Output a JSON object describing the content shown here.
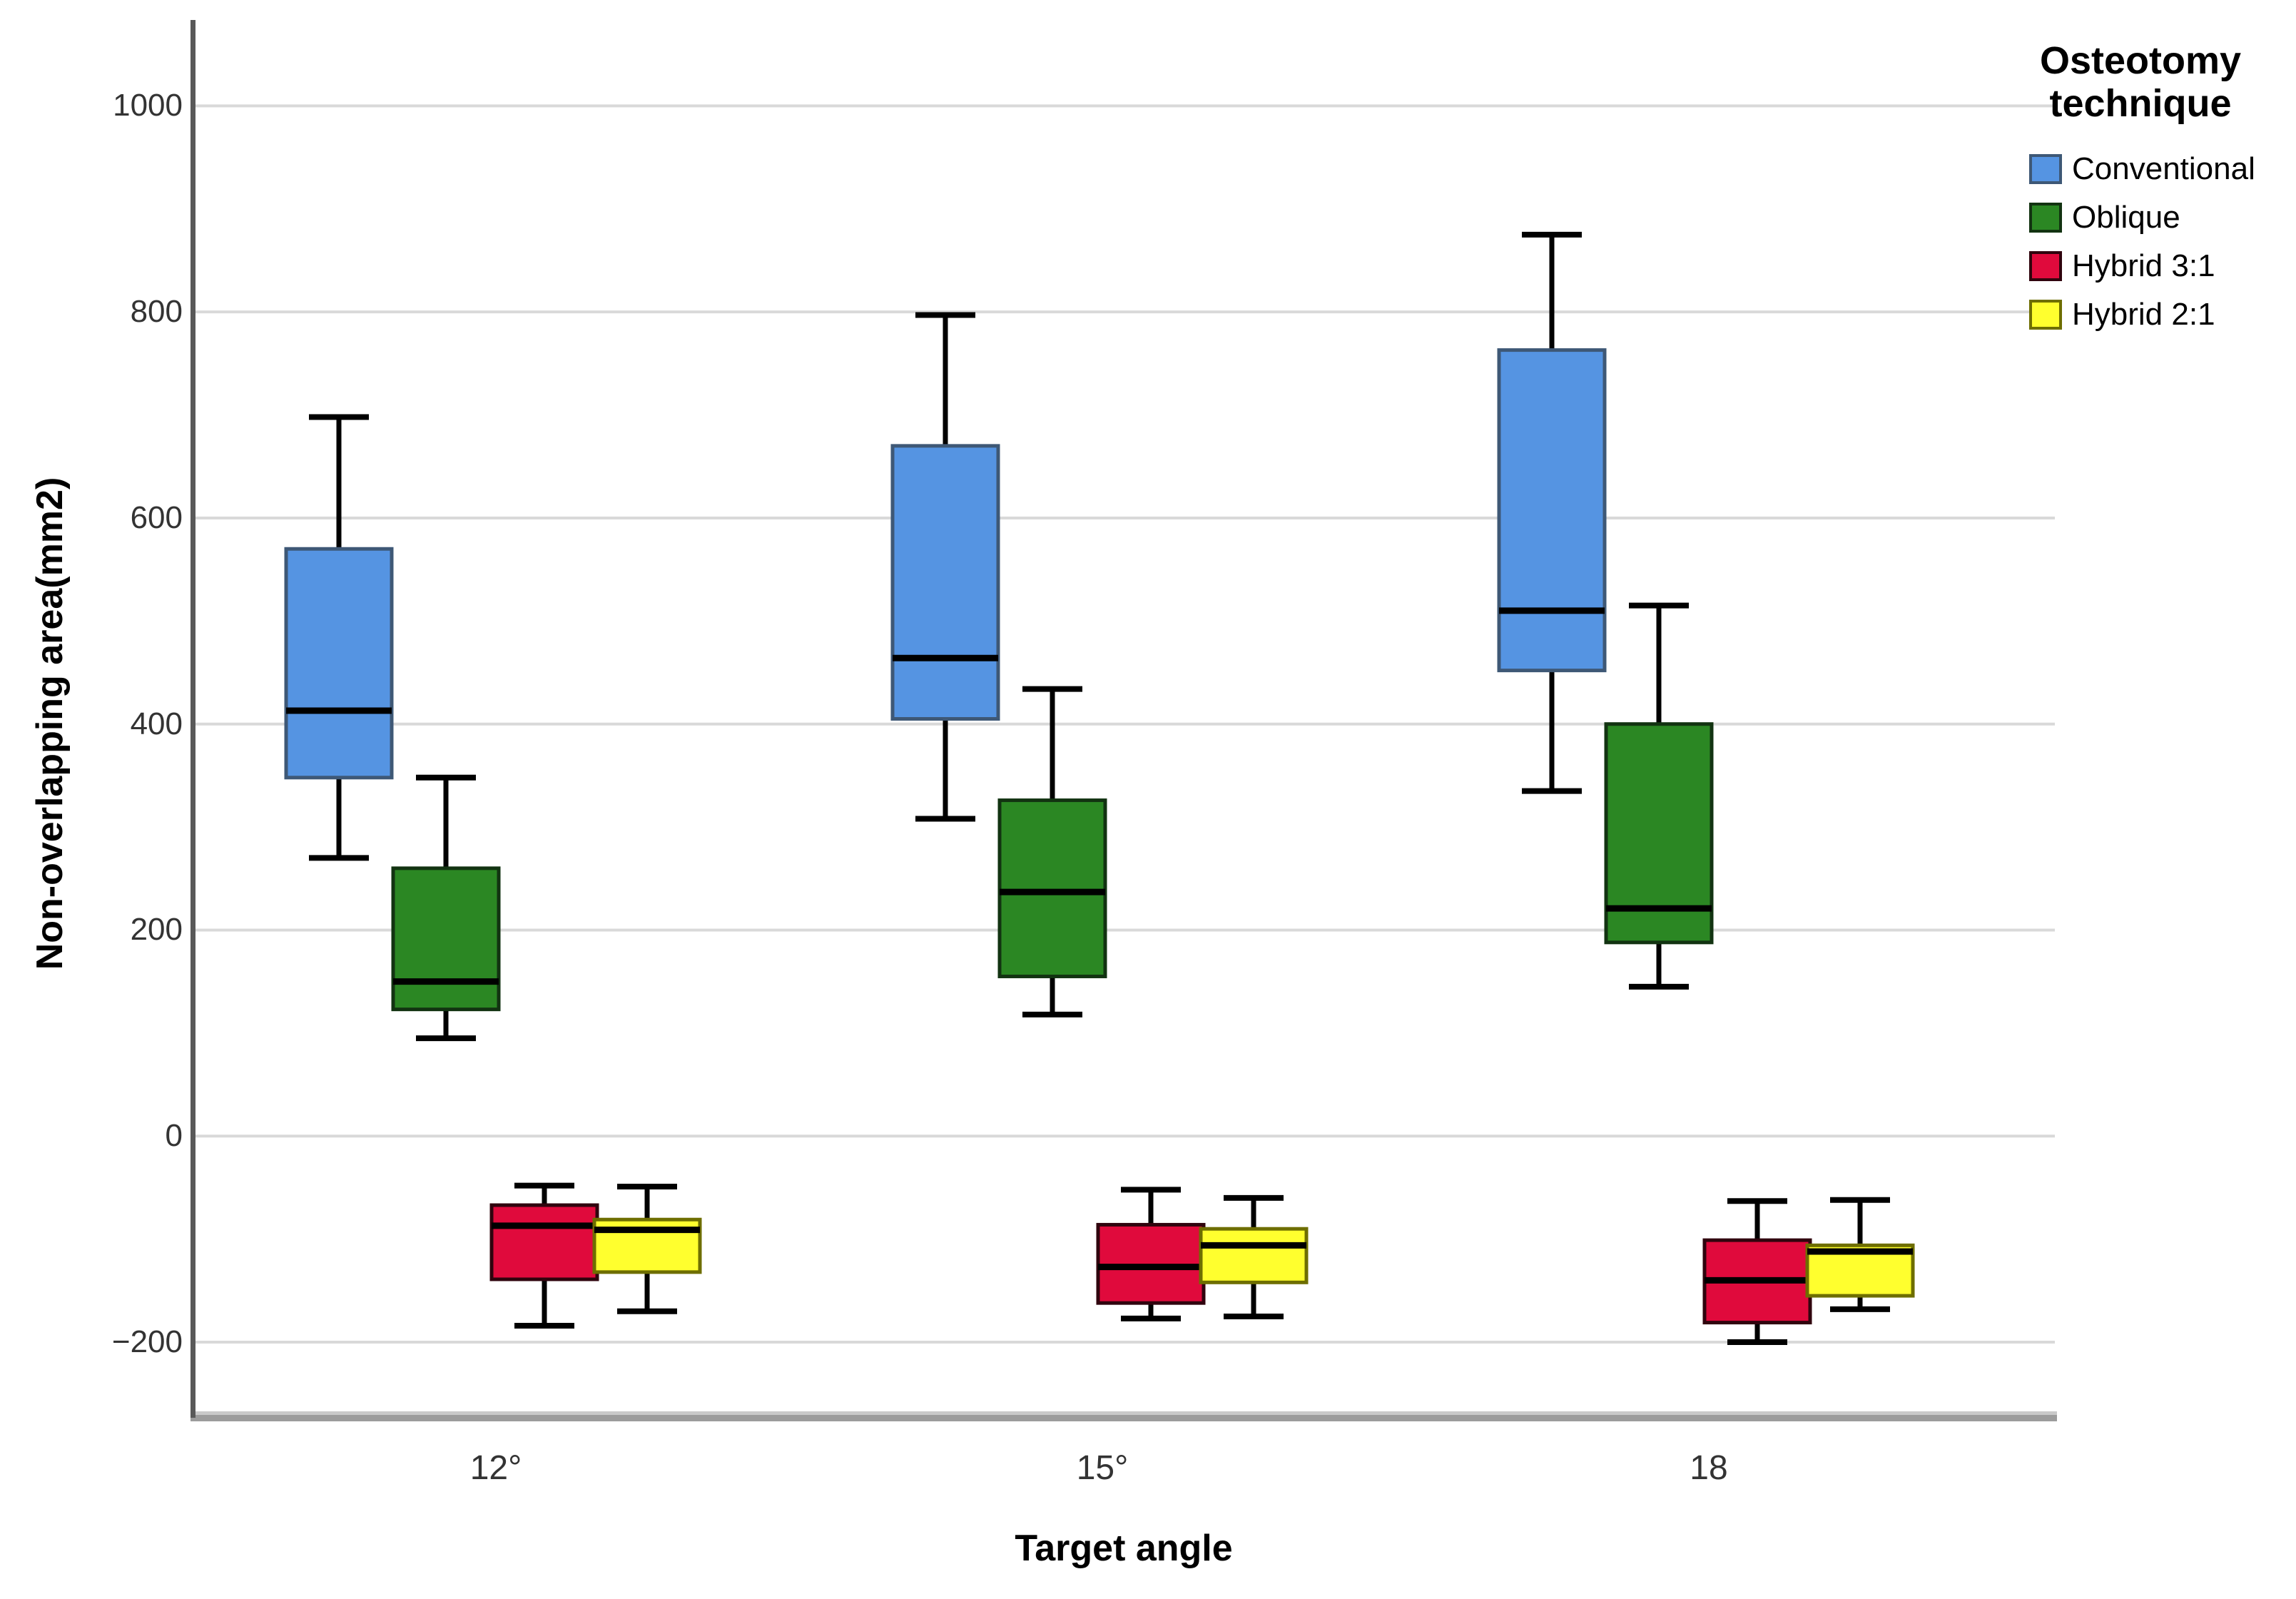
{
  "axes": {
    "x_title": "Target angle",
    "y_title": "Non-overlapping area(mm2)"
  },
  "legend": {
    "title_line1": "Osteotomy",
    "title_line2": "technique",
    "items": [
      {
        "label": "Conventional",
        "color": "#5594E2",
        "border": "#3E5876"
      },
      {
        "label": "Oblique",
        "color": "#2B8723",
        "border": "#123311"
      },
      {
        "label": "Hybrid 3:1",
        "color": "#E00A3C",
        "border": "#30040E"
      },
      {
        "label": "Hybrid 2:1",
        "color": "#FFFF2E",
        "border": "#6E6E00"
      }
    ]
  },
  "chart_data": {
    "type": "box",
    "xlabel": "Target angle",
    "ylabel": "Non-overlapping area(mm2)",
    "categories": [
      "12°",
      "15°",
      "18"
    ],
    "ytick_labels": [
      "1000",
      "800",
      "600",
      "400",
      "200",
      "0",
      "−200"
    ],
    "ytick_values": [
      1000,
      800,
      600,
      400,
      200,
      0,
      -200
    ],
    "ylim": [
      -272,
      1082
    ],
    "grid": true,
    "legend_position": "right",
    "colors": {
      "gridline": "#D9D9D9",
      "axis_line": "#595959",
      "bottom_band_light": "#C9C9C9",
      "bottom_band_dark": "#9C9C9C",
      "median": "#000000",
      "whisker": "#000000"
    },
    "series": [
      {
        "name": "Conventional",
        "color": "#5594E2",
        "border": "#3E5876",
        "offset": -220,
        "boxes": [
          {
            "category": "12°",
            "low": 270,
            "q1": 348,
            "median": 413,
            "q3": 570,
            "high": 698
          },
          {
            "category": "15°",
            "low": 308,
            "q1": 405,
            "median": 464,
            "q3": 670,
            "high": 797
          },
          {
            "category": "18",
            "low": 335,
            "q1": 452,
            "median": 510,
            "q3": 763,
            "high": 875
          }
        ]
      },
      {
        "name": "Oblique",
        "color": "#2B8723",
        "border": "#123311",
        "offset": -70,
        "boxes": [
          {
            "category": "12°",
            "low": 95,
            "q1": 123,
            "median": 150,
            "q3": 260,
            "high": 348
          },
          {
            "category": "15°",
            "low": 118,
            "q1": 155,
            "median": 237,
            "q3": 326,
            "high": 434
          },
          {
            "category": "18",
            "low": 145,
            "q1": 188,
            "median": 221,
            "q3": 400,
            "high": 515
          }
        ]
      },
      {
        "name": "Hybrid 3:1",
        "color": "#E00A3C",
        "border": "#30040E",
        "offset": 68,
        "boxes": [
          {
            "category": "12°",
            "low": -184,
            "q1": -139,
            "median": -87,
            "q3": -67,
            "high": -48
          },
          {
            "category": "15°",
            "low": -177,
            "q1": -162,
            "median": -127,
            "q3": -86,
            "high": -52
          },
          {
            "category": "18",
            "low": -200,
            "q1": -181,
            "median": -140,
            "q3": -101,
            "high": -63
          }
        ]
      },
      {
        "name": "Hybrid 2:1",
        "color": "#FFFF2E",
        "border": "#6E6E00",
        "offset": 212,
        "boxes": [
          {
            "category": "12°",
            "low": -170,
            "q1": -132,
            "median": -91,
            "q3": -81,
            "high": -49
          },
          {
            "category": "15°",
            "low": -175,
            "q1": -142,
            "median": -106,
            "q3": -90,
            "high": -60
          },
          {
            "category": "18",
            "low": -168,
            "q1": -155,
            "median": -112,
            "q3": -106,
            "high": -62
          }
        ]
      }
    ]
  }
}
